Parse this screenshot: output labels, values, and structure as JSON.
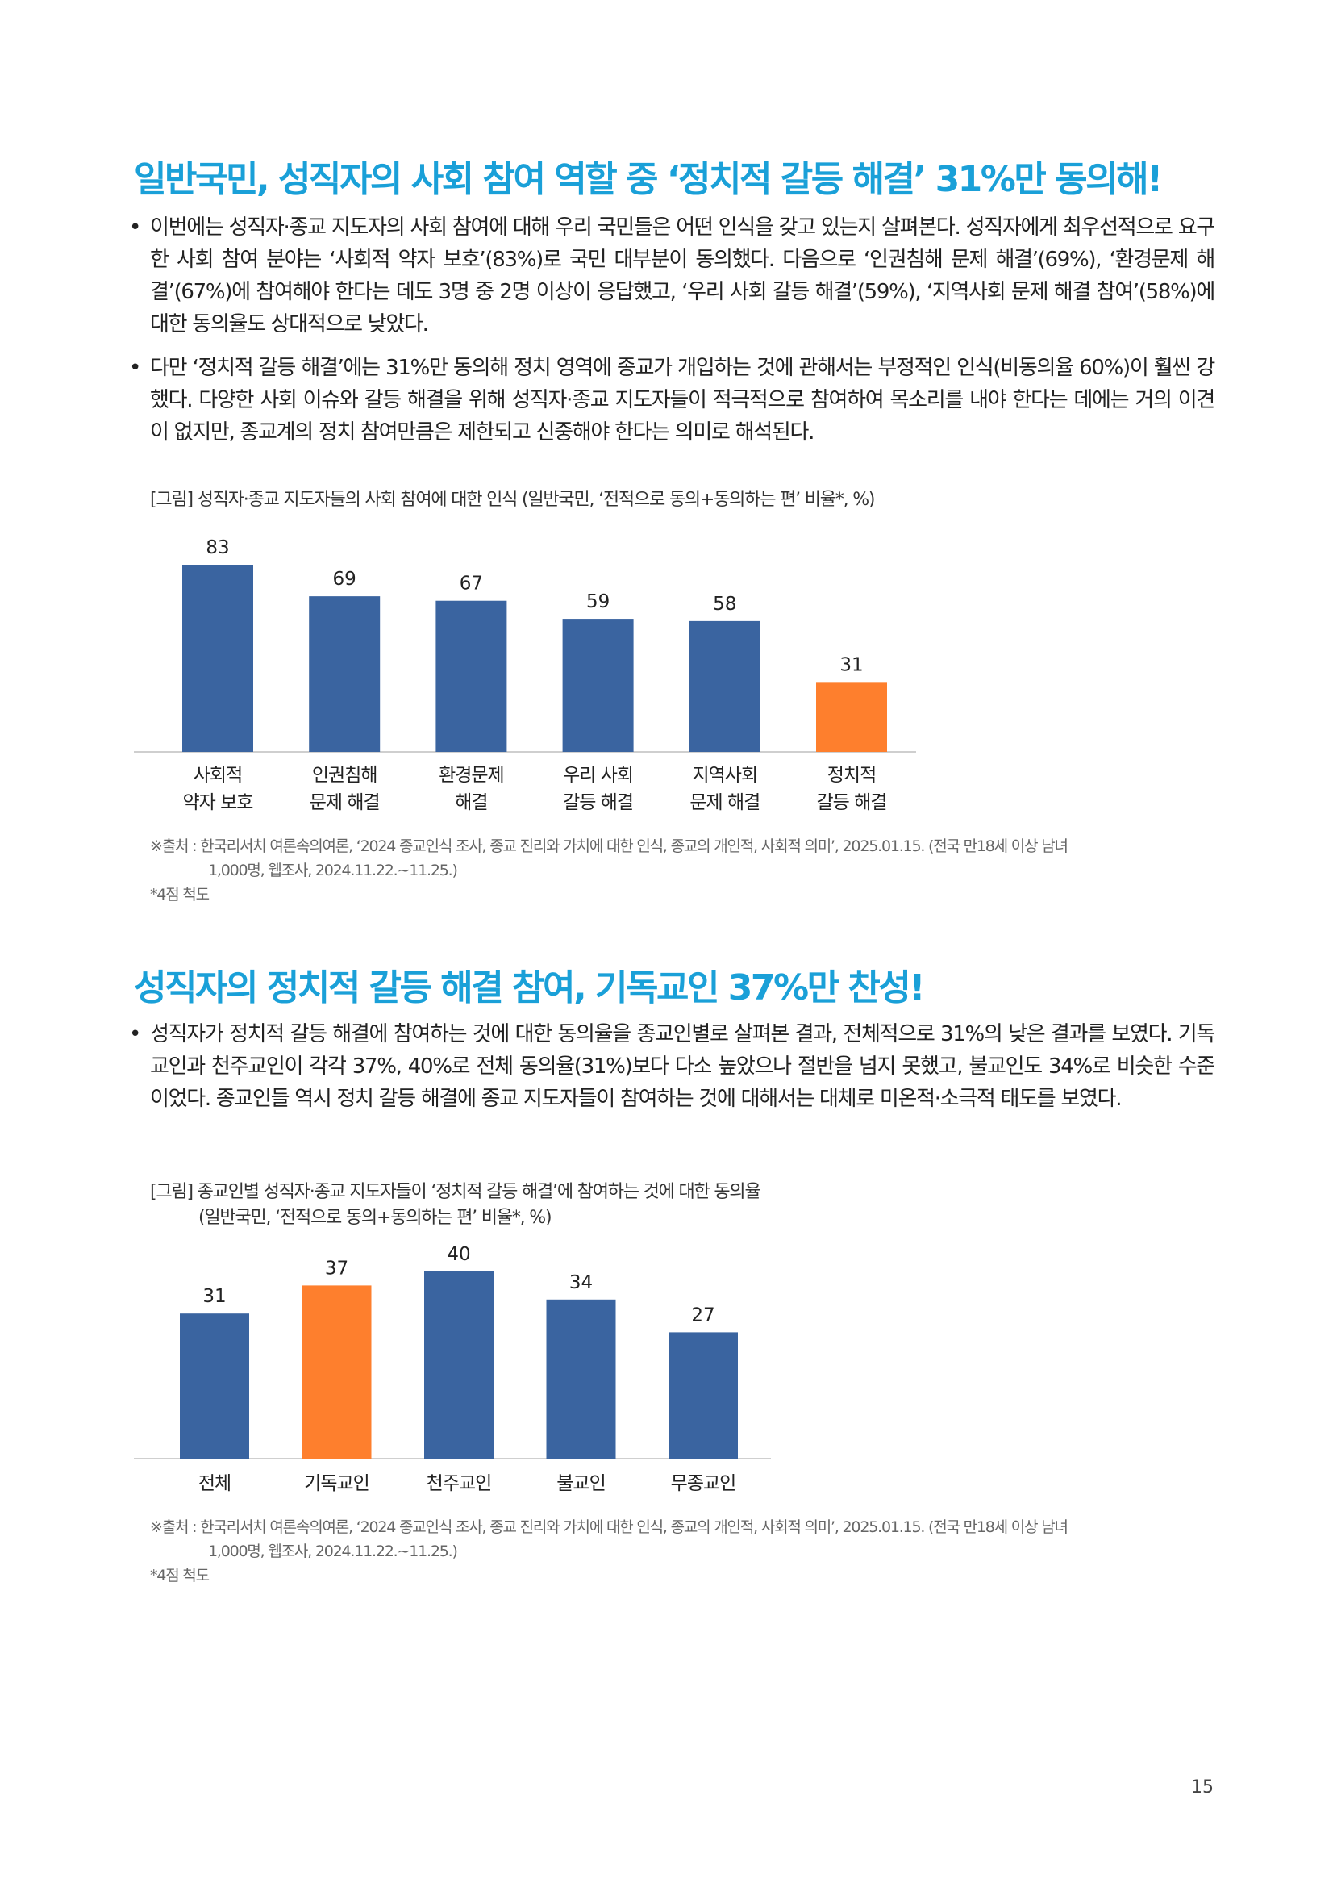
{
  "section1": {
    "heading": "일반국민, 성직자의 사회 참여 역할 중 ‘정치적 갈등 해결’ 31%만 동의해!",
    "bullets": [
      "이번에는 성직자·종교 지도자의 사회 참여에 대해 우리 국민들은 어떤 인식을 갖고 있는지 살펴본다. 성직자에게 최우선적으로 요구한 사회 참여 분야는 ‘사회적 약자 보호’(83%)로 국민 대부분이 동의했다. 다음으로 ‘인권침해 문제 해결’(69%), ‘환경문제 해결’(67%)에 참여해야 한다는 데도 3명 중 2명 이상이 응답했고, ‘우리 사회 갈등 해결’(59%), ‘지역사회 문제 해결 참여’(58%)에 대한 동의율도 상대적으로 낮았다.",
      "다만 ‘정치적 갈등 해결’에는 31%만 동의해 정치 영역에 종교가 개입하는 것에 관해서는 부정적인 인식(비동의율 60%)이 훨씬 강했다. 다양한 사회 이슈와 갈등 해결을 위해 성직자·종교 지도자들이 적극적으로 참여하여 목소리를 내야 한다는 데에는 거의 이견이 없지만, 종교계의 정치 참여만큼은 제한되고 신중해야 한다는 의미로 해석된다."
    ],
    "figure_caption": "[그림] 성직자·종교 지도자들의 사회 참여에 대한 인식 (일반국민, ‘전적으로 동의+동의하는 편’ 비율*, %)",
    "source_line1": "※출처 : 한국리서치 여론속의여론, ‘2024 종교인식 조사, 종교 진리와 가치에 대한 인식, 종교의 개인적, 사회적 의미’, 2025.01.15. (전국 만18세 이상 남녀",
    "source_line2": "1,000명, 웹조사, 2024.11.22.~11.25.)",
    "scale_note": "*4점 척도"
  },
  "section2": {
    "heading": "성직자의 정치적 갈등 해결 참여, 기독교인 37%만 찬성!",
    "bullets": [
      "성직자가 정치적 갈등 해결에 참여하는 것에 대한 동의율을 종교인별로 살펴본 결과, 전체적으로 31%의 낮은 결과를 보였다. 기독교인과 천주교인이 각각 37%, 40%로 전체 동의율(31%)보다 다소 높았으나 절반을 넘지 못했고, 불교인도 34%로 비슷한 수준이었다. 종교인들 역시 정치 갈등 해결에 종교 지도자들이 참여하는 것에 대해서는 대체로 미온적·소극적 태도를 보였다."
    ],
    "figure_caption_line1": "[그림] 종교인별 성직자·종교 지도자들이 ‘정치적 갈등 해결’에 참여하는 것에 대한 동의율",
    "figure_caption_line2": "(일반국민, ‘전적으로 동의+동의하는 편’ 비율*, %)",
    "source_line1": "※출처 : 한국리서치 여론속의여론, ‘2024 종교인식 조사, 종교 진리와 가치에 대한 인식, 종교의 개인적, 사회적 의미’, 2025.01.15. (전국 만18세 이상 남녀",
    "source_line2": "1,000명, 웹조사, 2024.11.22.~11.25.)",
    "scale_note": "*4점 척도"
  },
  "page_number": "15",
  "colors": {
    "heading": "#1aa0d8",
    "bar": "#3a64a0",
    "highlight": "#fe7f2d"
  },
  "chart_data": [
    {
      "type": "bar",
      "categories": [
        [
          "사회적",
          "약자 보호"
        ],
        [
          "인권침해",
          "문제 해결"
        ],
        [
          "환경문제",
          "해결"
        ],
        [
          "우리 사회",
          "갈등 해결"
        ],
        [
          "지역사회",
          "문제 해결"
        ],
        [
          "정치적",
          "갈등 해결"
        ]
      ],
      "values": [
        83,
        69,
        67,
        59,
        58,
        31
      ],
      "highlight_index": 5,
      "ylim": [
        0,
        83
      ],
      "grid": false,
      "title": "",
      "xlabel": "",
      "ylabel": ""
    },
    {
      "type": "bar",
      "categories": [
        [
          "전체"
        ],
        [
          "기독교인"
        ],
        [
          "천주교인"
        ],
        [
          "불교인"
        ],
        [
          "무종교인"
        ]
      ],
      "values": [
        31,
        37,
        40,
        34,
        27
      ],
      "highlight_index": 1,
      "ylim": [
        0,
        40
      ],
      "grid": false,
      "title": "",
      "xlabel": "",
      "ylabel": ""
    }
  ]
}
